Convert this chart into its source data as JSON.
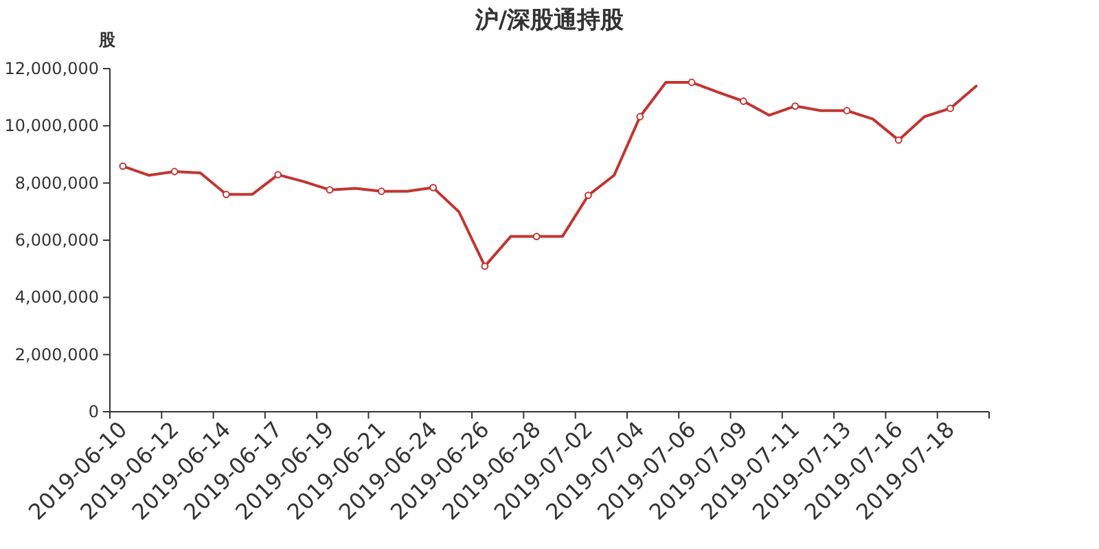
{
  "chart_data": {
    "type": "line",
    "title": "沪/深股通持股",
    "ylabel": "股",
    "categories": [
      "2019-06-10",
      null,
      "2019-06-12",
      null,
      "2019-06-14",
      null,
      "2019-06-17",
      null,
      "2019-06-19",
      null,
      "2019-06-21",
      null,
      "2019-06-24",
      null,
      "2019-06-26",
      null,
      "2019-06-28",
      null,
      "2019-07-02",
      null,
      "2019-07-04",
      null,
      "2019-07-06",
      null,
      "2019-07-09",
      null,
      "2019-07-11",
      null,
      "2019-07-13",
      null,
      "2019-07-16",
      null,
      "2019-07-18",
      null
    ],
    "series": [
      {
        "color": "#c23531",
        "values": [
          8590000,
          8270000,
          8400000,
          8350000,
          7600000,
          7600000,
          8290000,
          8050000,
          7760000,
          7810000,
          7710000,
          7710000,
          7840000,
          6990000,
          5090000,
          6130000,
          6130000,
          6130000,
          7570000,
          8270000,
          10320000,
          11520000,
          11520000,
          11180000,
          10860000,
          10370000,
          10690000,
          10530000,
          10530000,
          10240000,
          9500000,
          10320000,
          10610000,
          11390000
        ]
      }
    ],
    "ylim": [
      0,
      12000000
    ],
    "yticks": [
      0,
      {
        "value": 2000000,
        "label": "2,000,000"
      },
      {
        "value": 4000000,
        "label": "4,000,000"
      },
      {
        "value": 6000000,
        "label": "6,000,000"
      },
      {
        "value": 8000000,
        "label": "8,000,000"
      },
      {
        "value": 10000000,
        "label": "10,000,000"
      },
      {
        "value": 12000000,
        "label": "12,000,000"
      }
    ],
    "grid": false,
    "marker": "circle",
    "line_style": "solid"
  }
}
